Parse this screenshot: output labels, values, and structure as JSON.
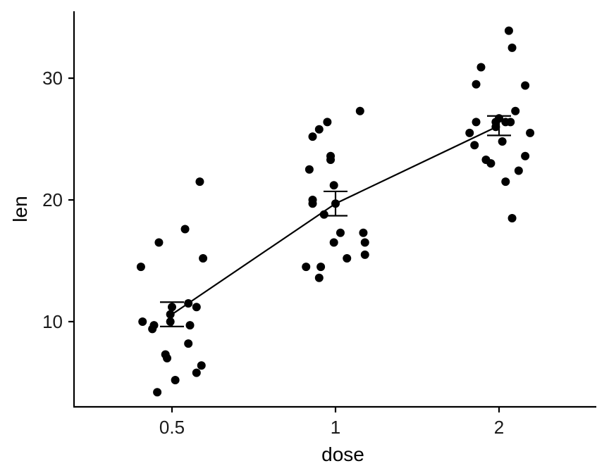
{
  "chart_data": {
    "type": "scatter",
    "title": "",
    "xlabel": "dose",
    "ylabel": "len",
    "x_tick_labels": [
      "0.5",
      "1",
      "2"
    ],
    "y_ticks": [
      10,
      20,
      30
    ],
    "ylim": [
      3,
      35.5
    ],
    "grid": false,
    "legend": "none",
    "point_color": "#000000",
    "groups": [
      {
        "category": "0.5",
        "points": [
          {
            "jitter": -0.19,
            "y": 14.5
          },
          {
            "jitter": -0.08,
            "y": 16.5
          },
          {
            "jitter": 0.08,
            "y": 17.6
          },
          {
            "jitter": 0.17,
            "y": 21.5
          },
          {
            "jitter": 0.19,
            "y": 15.2
          },
          {
            "jitter": -0.18,
            "y": 10.0
          },
          {
            "jitter": -0.11,
            "y": 9.7
          },
          {
            "jitter": -0.12,
            "y": 9.4
          },
          {
            "jitter": -0.01,
            "y": 10.6
          },
          {
            "jitter": 0.0,
            "y": 11.2
          },
          {
            "jitter": -0.01,
            "y": 10.0
          },
          {
            "jitter": 0.1,
            "y": 11.5
          },
          {
            "jitter": 0.15,
            "y": 11.2
          },
          {
            "jitter": 0.11,
            "y": 9.7
          },
          {
            "jitter": 0.1,
            "y": 8.2
          },
          {
            "jitter": -0.04,
            "y": 7.3
          },
          {
            "jitter": -0.03,
            "y": 7.0
          },
          {
            "jitter": 0.18,
            "y": 6.4
          },
          {
            "jitter": 0.15,
            "y": 5.8
          },
          {
            "jitter": 0.02,
            "y": 5.2
          },
          {
            "jitter": -0.09,
            "y": 4.2
          }
        ],
        "mean": 10.6,
        "err_low": 9.6,
        "err_high": 11.6
      },
      {
        "category": "1",
        "points": [
          {
            "jitter": 0.15,
            "y": 27.3
          },
          {
            "jitter": -0.05,
            "y": 26.4
          },
          {
            "jitter": -0.1,
            "y": 25.8
          },
          {
            "jitter": -0.14,
            "y": 25.2
          },
          {
            "jitter": -0.03,
            "y": 23.6
          },
          {
            "jitter": -0.03,
            "y": 23.3
          },
          {
            "jitter": -0.16,
            "y": 22.5
          },
          {
            "jitter": -0.01,
            "y": 21.2
          },
          {
            "jitter": -0.14,
            "y": 20.0
          },
          {
            "jitter": -0.14,
            "y": 19.7
          },
          {
            "jitter": 0.0,
            "y": 19.7
          },
          {
            "jitter": -0.07,
            "y": 18.8
          },
          {
            "jitter": 0.03,
            "y": 17.3
          },
          {
            "jitter": 0.17,
            "y": 17.3
          },
          {
            "jitter": -0.01,
            "y": 16.5
          },
          {
            "jitter": 0.18,
            "y": 16.5
          },
          {
            "jitter": 0.18,
            "y": 15.5
          },
          {
            "jitter": 0.07,
            "y": 15.2
          },
          {
            "jitter": -0.18,
            "y": 14.5
          },
          {
            "jitter": -0.09,
            "y": 14.5
          },
          {
            "jitter": -0.1,
            "y": 13.6
          }
        ],
        "mean": 19.7,
        "err_low": 18.7,
        "err_high": 20.7
      },
      {
        "category": "2",
        "points": [
          {
            "jitter": 0.06,
            "y": 33.9
          },
          {
            "jitter": 0.08,
            "y": 32.5
          },
          {
            "jitter": -0.11,
            "y": 30.9
          },
          {
            "jitter": -0.14,
            "y": 29.5
          },
          {
            "jitter": 0.16,
            "y": 29.4
          },
          {
            "jitter": 0.1,
            "y": 27.3
          },
          {
            "jitter": 0.0,
            "y": 26.7
          },
          {
            "jitter": 0.04,
            "y": 26.4
          },
          {
            "jitter": 0.07,
            "y": 26.4
          },
          {
            "jitter": -0.14,
            "y": 26.4
          },
          {
            "jitter": -0.02,
            "y": 26.4
          },
          {
            "jitter": -0.02,
            "y": 26.0
          },
          {
            "jitter": -0.18,
            "y": 25.5
          },
          {
            "jitter": 0.19,
            "y": 25.5
          },
          {
            "jitter": 0.02,
            "y": 24.8
          },
          {
            "jitter": -0.15,
            "y": 24.5
          },
          {
            "jitter": 0.16,
            "y": 23.6
          },
          {
            "jitter": -0.08,
            "y": 23.3
          },
          {
            "jitter": -0.05,
            "y": 23.0
          },
          {
            "jitter": 0.12,
            "y": 22.4
          },
          {
            "jitter": 0.04,
            "y": 21.5
          },
          {
            "jitter": 0.08,
            "y": 18.5
          }
        ],
        "mean": 26.1,
        "err_low": 25.3,
        "err_high": 26.9
      }
    ]
  }
}
